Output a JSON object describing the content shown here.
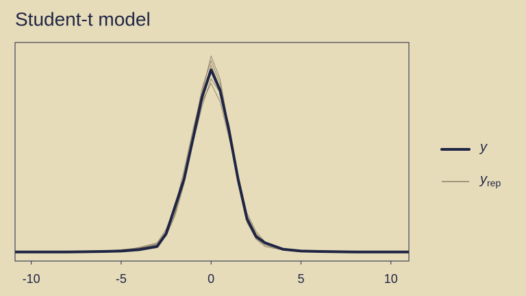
{
  "chart_data": {
    "type": "line",
    "title": "Student-t model",
    "x": [
      -10.9,
      -8,
      -6,
      -5,
      -4,
      -3,
      -2.5,
      -2,
      -1.5,
      -1,
      -0.5,
      0,
      0.5,
      1,
      1.5,
      2,
      2.5,
      3,
      4,
      5,
      6,
      8,
      11
    ],
    "series": [
      {
        "name": "y",
        "color": "#1f2544",
        "values": [
          0,
          0,
          0.001,
          0.002,
          0.005,
          0.012,
          0.04,
          0.1,
          0.16,
          0.25,
          0.34,
          0.4,
          0.355,
          0.266,
          0.16,
          0.072,
          0.034,
          0.02,
          0.006,
          0.002,
          0.001,
          0,
          0
        ]
      },
      {
        "name": "yrep",
        "color": "#7a6c55",
        "values": [
          [
            0,
            0,
            0.001,
            0.004,
            0.008,
            0.018,
            0.045,
            0.09,
            0.17,
            0.26,
            0.36,
            0.42,
            0.37,
            0.26,
            0.15,
            0.07,
            0.03,
            0.015,
            0.005,
            0.002,
            0,
            0,
            0
          ],
          [
            0,
            0,
            0.002,
            0.003,
            0.006,
            0.015,
            0.035,
            0.08,
            0.15,
            0.25,
            0.33,
            0.37,
            0.33,
            0.25,
            0.16,
            0.08,
            0.04,
            0.02,
            0.008,
            0.003,
            0.001,
            0,
            0
          ],
          [
            0,
            0,
            0.001,
            0.002,
            0.01,
            0.02,
            0.05,
            0.1,
            0.18,
            0.27,
            0.35,
            0.43,
            0.38,
            0.27,
            0.15,
            0.065,
            0.028,
            0.012,
            0.004,
            0.001,
            0,
            0,
            0
          ],
          [
            0,
            0.001,
            0.002,
            0.005,
            0.009,
            0.016,
            0.04,
            0.095,
            0.165,
            0.24,
            0.32,
            0.38,
            0.35,
            0.28,
            0.17,
            0.085,
            0.045,
            0.022,
            0.007,
            0.002,
            0.001,
            0,
            0
          ],
          [
            0,
            0,
            0.001,
            0.003,
            0.007,
            0.014,
            0.038,
            0.085,
            0.155,
            0.255,
            0.345,
            0.41,
            0.36,
            0.265,
            0.155,
            0.075,
            0.036,
            0.018,
            0.006,
            0.003,
            0.001,
            0,
            0
          ]
        ]
      }
    ],
    "xlim": [
      -10.9,
      11
    ],
    "xticks": [
      -10,
      -5,
      0,
      5,
      10
    ],
    "ylim": [
      -0.02,
      0.46
    ]
  }
}
